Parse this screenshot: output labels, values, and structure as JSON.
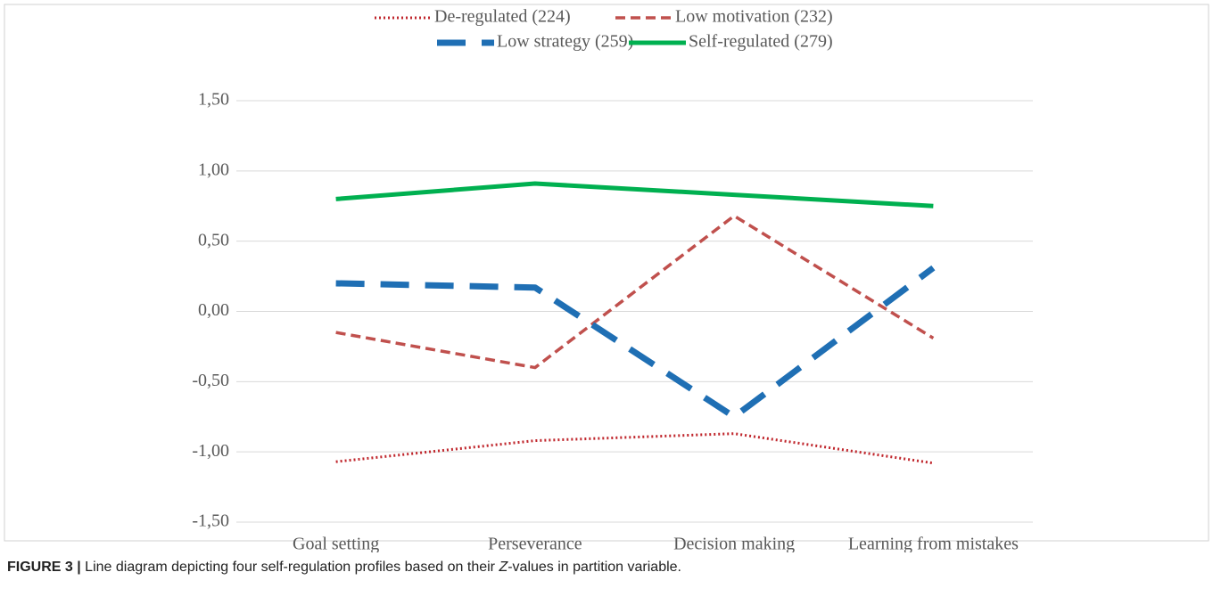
{
  "chart_data": {
    "type": "line",
    "categories": [
      "Goal setting",
      "Perseverance",
      "Decision making",
      "Learning from mistakes"
    ],
    "series": [
      {
        "name": "De-regulated (224)",
        "color": "#c0272d",
        "dash": "dotted",
        "values": [
          -1.07,
          -0.92,
          -0.87,
          -1.08
        ]
      },
      {
        "name": "Low motivation (232)",
        "color": "#c0504d",
        "dash": "dashed",
        "values": [
          -0.15,
          -0.4,
          0.68,
          -0.19
        ]
      },
      {
        "name": "Low strategy (259)",
        "color": "#1f6fb4",
        "dash": "long-dash",
        "values": [
          0.2,
          0.17,
          -0.75,
          0.31
        ]
      },
      {
        "name": "Self-regulated (279)",
        "color": "#00b050",
        "dash": "solid",
        "values": [
          0.8,
          0.91,
          0.83,
          0.75
        ]
      }
    ],
    "ylim": [
      -1.5,
      1.5
    ],
    "yticks": [
      {
        "value": -1.5,
        "label": "-1,50"
      },
      {
        "value": -1,
        "label": "-1,00"
      },
      {
        "value": -0.5,
        "label": "-0,50"
      },
      {
        "value": 0,
        "label": "0,00"
      },
      {
        "value": 0.5,
        "label": "0,50"
      },
      {
        "value": 1,
        "label": "1,00"
      },
      {
        "value": 1.5,
        "label": "1,50"
      }
    ],
    "grid": true,
    "legend": "top"
  },
  "caption": {
    "label": "FIGURE 3 |",
    "before": " Line diagram depicting four self-regulation profiles based on their ",
    "italic": "Z",
    "after": "-values in partition variable."
  }
}
